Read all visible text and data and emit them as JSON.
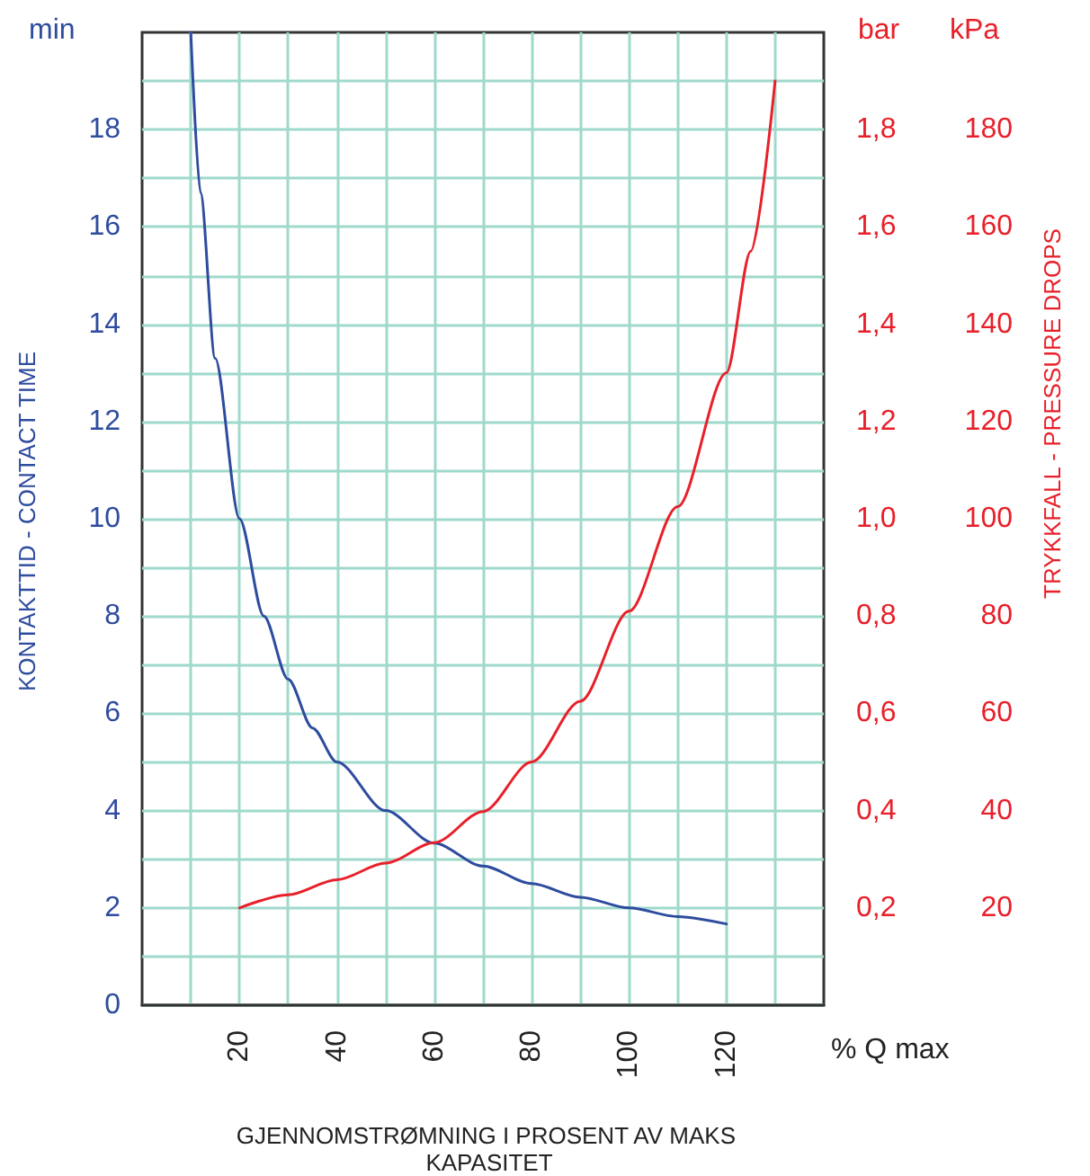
{
  "chart_data": {
    "type": "line",
    "xlabel": "GJENNOMSTRØMNING I PROSENT AV MAKS KAPASITET",
    "ylabel": "KONTAKTTID - CONTACT TIME",
    "y2label": "TRYKKFALL - PRESSURE DROPS",
    "annotations": [
      "min",
      "bar",
      "kPa",
      "% Q max"
    ],
    "xlim": [
      0,
      140
    ],
    "xticks": [
      {
        "value": 10,
        "label": null
      },
      20,
      {
        "value": 30,
        "label": null
      },
      40,
      {
        "value": 50,
        "label": null
      },
      60,
      {
        "value": 70,
        "label": null
      },
      80,
      {
        "value": 90,
        "label": null
      },
      100,
      {
        "value": 110,
        "label": null
      },
      120,
      {
        "value": 130,
        "label": null
      }
    ],
    "ylim": [
      0,
      20
    ],
    "yticks": [
      0,
      {
        "value": 1,
        "label": null
      },
      2,
      {
        "value": 3,
        "label": null
      },
      4,
      {
        "value": 5,
        "label": null
      },
      6,
      {
        "value": 7,
        "label": null
      },
      8,
      {
        "value": 9,
        "label": null
      },
      10,
      {
        "value": 11,
        "label": null
      },
      12,
      {
        "value": 13,
        "label": null
      },
      14,
      {
        "value": 15,
        "label": null
      },
      16,
      {
        "value": 17,
        "label": null
      },
      18,
      {
        "value": 19,
        "label": null
      }
    ],
    "y2lim": [
      0,
      2
    ],
    "y2ticks": [
      {
        "value": 0.2,
        "label": "0,2"
      },
      {
        "value": 0.4,
        "label": "0,4"
      },
      {
        "value": 0.6,
        "label": "0,6"
      },
      {
        "value": 0.8,
        "label": "0,8"
      },
      {
        "value": 1,
        "label": "1,0"
      },
      {
        "value": 1.2,
        "label": "1,2"
      },
      {
        "value": 1.4,
        "label": "1,4"
      },
      {
        "value": 1.6,
        "label": "1,6"
      },
      {
        "value": 1.8,
        "label": "1,8"
      }
    ],
    "y3lim": [
      0,
      200
    ],
    "y3ticks": [
      20,
      40,
      60,
      80,
      100,
      120,
      140,
      160,
      180
    ],
    "grid": true,
    "marker": "none",
    "line_style": "solid",
    "series": [
      {
        "color": "#2e4c9e",
        "x": [
          10,
          12,
          15,
          20,
          25,
          30,
          35,
          40,
          50,
          60,
          70,
          80,
          90,
          100,
          110,
          120
        ],
        "values": [
          20,
          16.7,
          13.3,
          10,
          8,
          6.7,
          5.7,
          5,
          4,
          3.33,
          2.86,
          2.5,
          2.22,
          2,
          1.82,
          1.67
        ]
      },
      {
        "color": "#e8202a",
        "axis": "y2",
        "x": [
          20,
          30,
          40,
          50,
          60,
          70,
          80,
          90,
          100,
          110,
          120,
          125,
          130
        ],
        "values": [
          0.2,
          0.227,
          0.258,
          0.292,
          0.334,
          0.398,
          0.5,
          0.625,
          0.81,
          1.025,
          1.3,
          1.55,
          1.9
        ]
      }
    ]
  }
}
